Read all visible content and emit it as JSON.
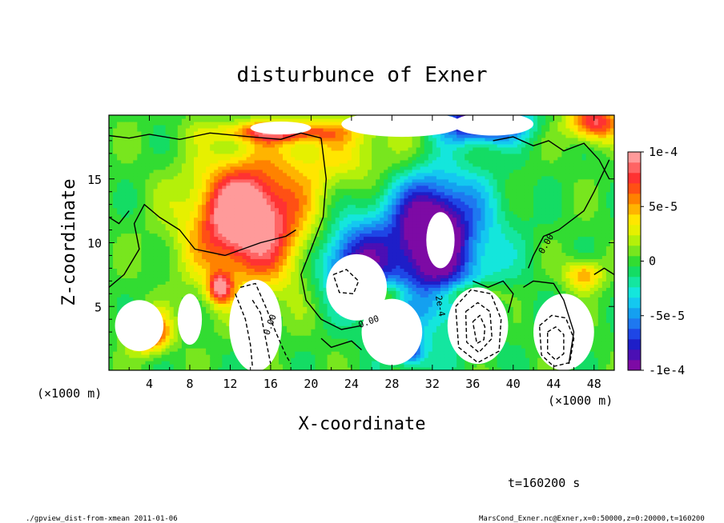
{
  "chart_data": {
    "type": "heatmap",
    "title": "disturbunce of Exner",
    "xlabel": "X-coordinate",
    "ylabel": "Z-coordinate",
    "x_unit": "(×1000 m)",
    "z_unit": "(×1000 m)",
    "xlim": [
      0,
      50
    ],
    "ylim": [
      0,
      20
    ],
    "x_ticks": [
      "4",
      "8",
      "12",
      "16",
      "20",
      "24",
      "28",
      "32",
      "36",
      "40",
      "44",
      "48"
    ],
    "y_ticks": [
      "5",
      "10",
      "15"
    ],
    "colorbar": {
      "min": -0.0001,
      "max": 0.0001,
      "labels": [
        "1e-4",
        "5e-5",
        "0",
        "-5e-5",
        "-1e-4"
      ],
      "colors": [
        "#7d0aa5",
        "#4b0fb4",
        "#1e1ec8",
        "#1e46e6",
        "#1e78f0",
        "#14a0f0",
        "#14c8f0",
        "#14e6dc",
        "#14e6a0",
        "#14dc64",
        "#32dc32",
        "#78e61e",
        "#b4f00a",
        "#e6f000",
        "#ffe600",
        "#ffb400",
        "#ff8200",
        "#ff5014",
        "#ff3232",
        "#ff6464",
        "#ff9a9a"
      ]
    },
    "contour_labels": [
      "0.00",
      "0.00",
      "0.00",
      "2e-4"
    ],
    "annotation": "t=160200 s",
    "footer_left": "./gpview_dist-from-xmean  2011-01-06",
    "footer_right": "MarsCond_Exner.nc@Exner,x=0:50000,z=0:20000,t=160200",
    "blobs": [
      {
        "x": 14,
        "z": 11.5,
        "rx": 6,
        "rz": 5,
        "v": 1.0
      },
      {
        "x": 13,
        "z": 12.5,
        "rx": 3.5,
        "rz": 3,
        "v": 0.4
      },
      {
        "x": 25,
        "z": 17,
        "rx": 9,
        "rz": 3,
        "v": 0.35
      },
      {
        "x": 32,
        "z": 10,
        "rx": 6,
        "rz": 6.5,
        "v": -0.9
      },
      {
        "x": 32,
        "z": 11,
        "rx": 3,
        "rz": 3.5,
        "v": -0.5
      },
      {
        "x": 24,
        "z": 8.5,
        "rx": 3.5,
        "rz": 3,
        "v": -0.8
      },
      {
        "x": 37,
        "z": 19.5,
        "rx": 4,
        "rz": 1.5,
        "v": -1.2
      },
      {
        "x": 48,
        "z": 19.5,
        "rx": 2.5,
        "rz": 1.5,
        "v": 0.9
      },
      {
        "x": 17,
        "z": 18.7,
        "rx": 6,
        "rz": 0.8,
        "v": 0.7
      },
      {
        "x": 11,
        "z": 6.5,
        "rx": 1.2,
        "rz": 1.2,
        "v": 0.8
      },
      {
        "x": 4,
        "z": 3.0,
        "rx": 2,
        "rz": 1.5,
        "v": 0.9
      },
      {
        "x": 47,
        "z": 7.5,
        "rx": 1.8,
        "rz": 1.2,
        "v": 0.6
      },
      {
        "x": 27,
        "z": 6.0,
        "rx": 3,
        "rz": 1,
        "v": 0.5
      },
      {
        "x": 36,
        "z": 6.0,
        "rx": 3,
        "rz": 1,
        "v": 0.5
      },
      {
        "x": 30,
        "z": 1.5,
        "rx": 1.2,
        "rz": 1.2,
        "v": -0.6
      }
    ],
    "white_regions": [
      {
        "x": 14.5,
        "z": 3.5,
        "rx": 2.6,
        "rz": 3.6
      },
      {
        "x": 24.5,
        "z": 6.5,
        "rx": 3,
        "rz": 2.6
      },
      {
        "x": 32.8,
        "z": 10.2,
        "rx": 1.4,
        "rz": 2.2
      },
      {
        "x": 28,
        "z": 3,
        "rx": 3,
        "rz": 2.6
      },
      {
        "x": 36.5,
        "z": 3.5,
        "rx": 3,
        "rz": 3
      },
      {
        "x": 45,
        "z": 3,
        "rx": 3,
        "rz": 3
      },
      {
        "x": 8,
        "z": 4,
        "rx": 1.2,
        "rz": 2
      },
      {
        "x": 3,
        "z": 3.5,
        "rx": 2.4,
        "rz": 2
      },
      {
        "x": 29,
        "z": 19.3,
        "rx": 6,
        "rz": 1.0
      },
      {
        "x": 38,
        "z": 19.3,
        "rx": 4,
        "rz": 0.9
      },
      {
        "x": 17,
        "z": 19.0,
        "rx": 3,
        "rz": 0.5
      }
    ],
    "solid_contours": [
      [
        [
          0,
          18.4
        ],
        [
          2,
          18.2
        ],
        [
          4,
          18.5
        ],
        [
          7,
          18.1
        ],
        [
          10,
          18.6
        ],
        [
          14,
          18.3
        ],
        [
          17,
          18.1
        ],
        [
          19,
          18.6
        ],
        [
          21,
          18.2
        ]
      ],
      [
        [
          21,
          18.2
        ],
        [
          21.5,
          15
        ],
        [
          21.2,
          12
        ],
        [
          20,
          9.5
        ],
        [
          19,
          7.5
        ],
        [
          19.5,
          5.5
        ],
        [
          21,
          4
        ],
        [
          23,
          3.2
        ],
        [
          25,
          3.5
        ]
      ],
      [
        [
          0,
          6.5
        ],
        [
          1.5,
          7.5
        ],
        [
          3,
          9.5
        ],
        [
          2.5,
          11.5
        ],
        [
          3.5,
          13
        ],
        [
          5,
          12
        ],
        [
          7,
          11
        ],
        [
          8.5,
          9.5
        ],
        [
          11.5,
          9
        ],
        [
          15,
          10
        ],
        [
          17.5,
          10.5
        ],
        [
          18.5,
          11
        ]
      ],
      [
        [
          0,
          12
        ],
        [
          1,
          11.5
        ],
        [
          2,
          12.5
        ]
      ],
      [
        [
          38,
          18
        ],
        [
          40,
          18.3
        ],
        [
          42,
          17.6
        ],
        [
          43.5,
          18
        ],
        [
          45,
          17.2
        ],
        [
          47,
          17.8
        ],
        [
          48.5,
          16.5
        ],
        [
          49.5,
          15
        ]
      ],
      [
        [
          49.5,
          16.5
        ],
        [
          48,
          14
        ],
        [
          47,
          12.5
        ],
        [
          44.5,
          11
        ],
        [
          43,
          10.5
        ],
        [
          42,
          9
        ],
        [
          41.5,
          8
        ]
      ],
      [
        [
          21,
          2.5
        ],
        [
          22,
          1.8
        ],
        [
          24,
          2.3
        ],
        [
          25,
          1.6
        ]
      ],
      [
        [
          36,
          7
        ],
        [
          37.5,
          6.5
        ],
        [
          39,
          7
        ],
        [
          40,
          6
        ],
        [
          39.5,
          4.5
        ]
      ],
      [
        [
          41,
          6.5
        ],
        [
          42,
          7
        ],
        [
          44,
          6.8
        ],
        [
          45,
          5.5
        ],
        [
          46,
          3
        ],
        [
          45.5,
          0.5
        ]
      ],
      [
        [
          48,
          7.5
        ],
        [
          49,
          8
        ],
        [
          50,
          7.5
        ]
      ]
    ],
    "dashed_contours": [
      [
        [
          13,
          6.5
        ],
        [
          14.5,
          6.8
        ],
        [
          15.5,
          5
        ],
        [
          16.5,
          3
        ],
        [
          17.5,
          1.2
        ],
        [
          18,
          0.5
        ]
      ],
      [
        [
          12.5,
          6
        ],
        [
          13.5,
          4
        ],
        [
          14,
          2
        ],
        [
          14.2,
          0.3
        ]
      ],
      [
        [
          14.2,
          5.5
        ],
        [
          15,
          4.5
        ],
        [
          15.5,
          2.5
        ],
        [
          16,
          0.5
        ]
      ],
      [
        [
          22.2,
          7.5
        ],
        [
          23.5,
          7.9
        ],
        [
          24.7,
          7
        ],
        [
          24.2,
          6
        ],
        [
          22.8,
          6.1
        ],
        [
          22.2,
          7.5
        ]
      ],
      [
        [
          34.3,
          5
        ],
        [
          35.8,
          6.3
        ],
        [
          37.8,
          6
        ],
        [
          38.8,
          4
        ],
        [
          38.6,
          1.5
        ],
        [
          36.5,
          0.6
        ],
        [
          34.6,
          1.8
        ],
        [
          34.3,
          5
        ]
      ],
      [
        [
          35.3,
          4.6
        ],
        [
          36.5,
          5.3
        ],
        [
          37.7,
          4.6
        ],
        [
          37.9,
          2.5
        ],
        [
          36.6,
          1.4
        ],
        [
          35.4,
          2.2
        ],
        [
          35.3,
          4.6
        ]
      ],
      [
        [
          36,
          3.8
        ],
        [
          36.7,
          4.3
        ],
        [
          37.2,
          3.4
        ],
        [
          37.1,
          2.4
        ],
        [
          36.4,
          2.1
        ],
        [
          36,
          3.8
        ]
      ],
      [
        [
          42.6,
          3.5
        ],
        [
          43.8,
          4.3
        ],
        [
          45.2,
          4.1
        ],
        [
          46,
          2.5
        ],
        [
          45.6,
          0.6
        ],
        [
          44,
          0.3
        ],
        [
          42.8,
          1.2
        ],
        [
          42.6,
          3.5
        ]
      ],
      [
        [
          43.4,
          3
        ],
        [
          44.2,
          3.4
        ],
        [
          45,
          2.8
        ],
        [
          45,
          1.3
        ],
        [
          44.2,
          0.8
        ],
        [
          43.4,
          1.4
        ],
        [
          43.4,
          3
        ]
      ]
    ]
  }
}
